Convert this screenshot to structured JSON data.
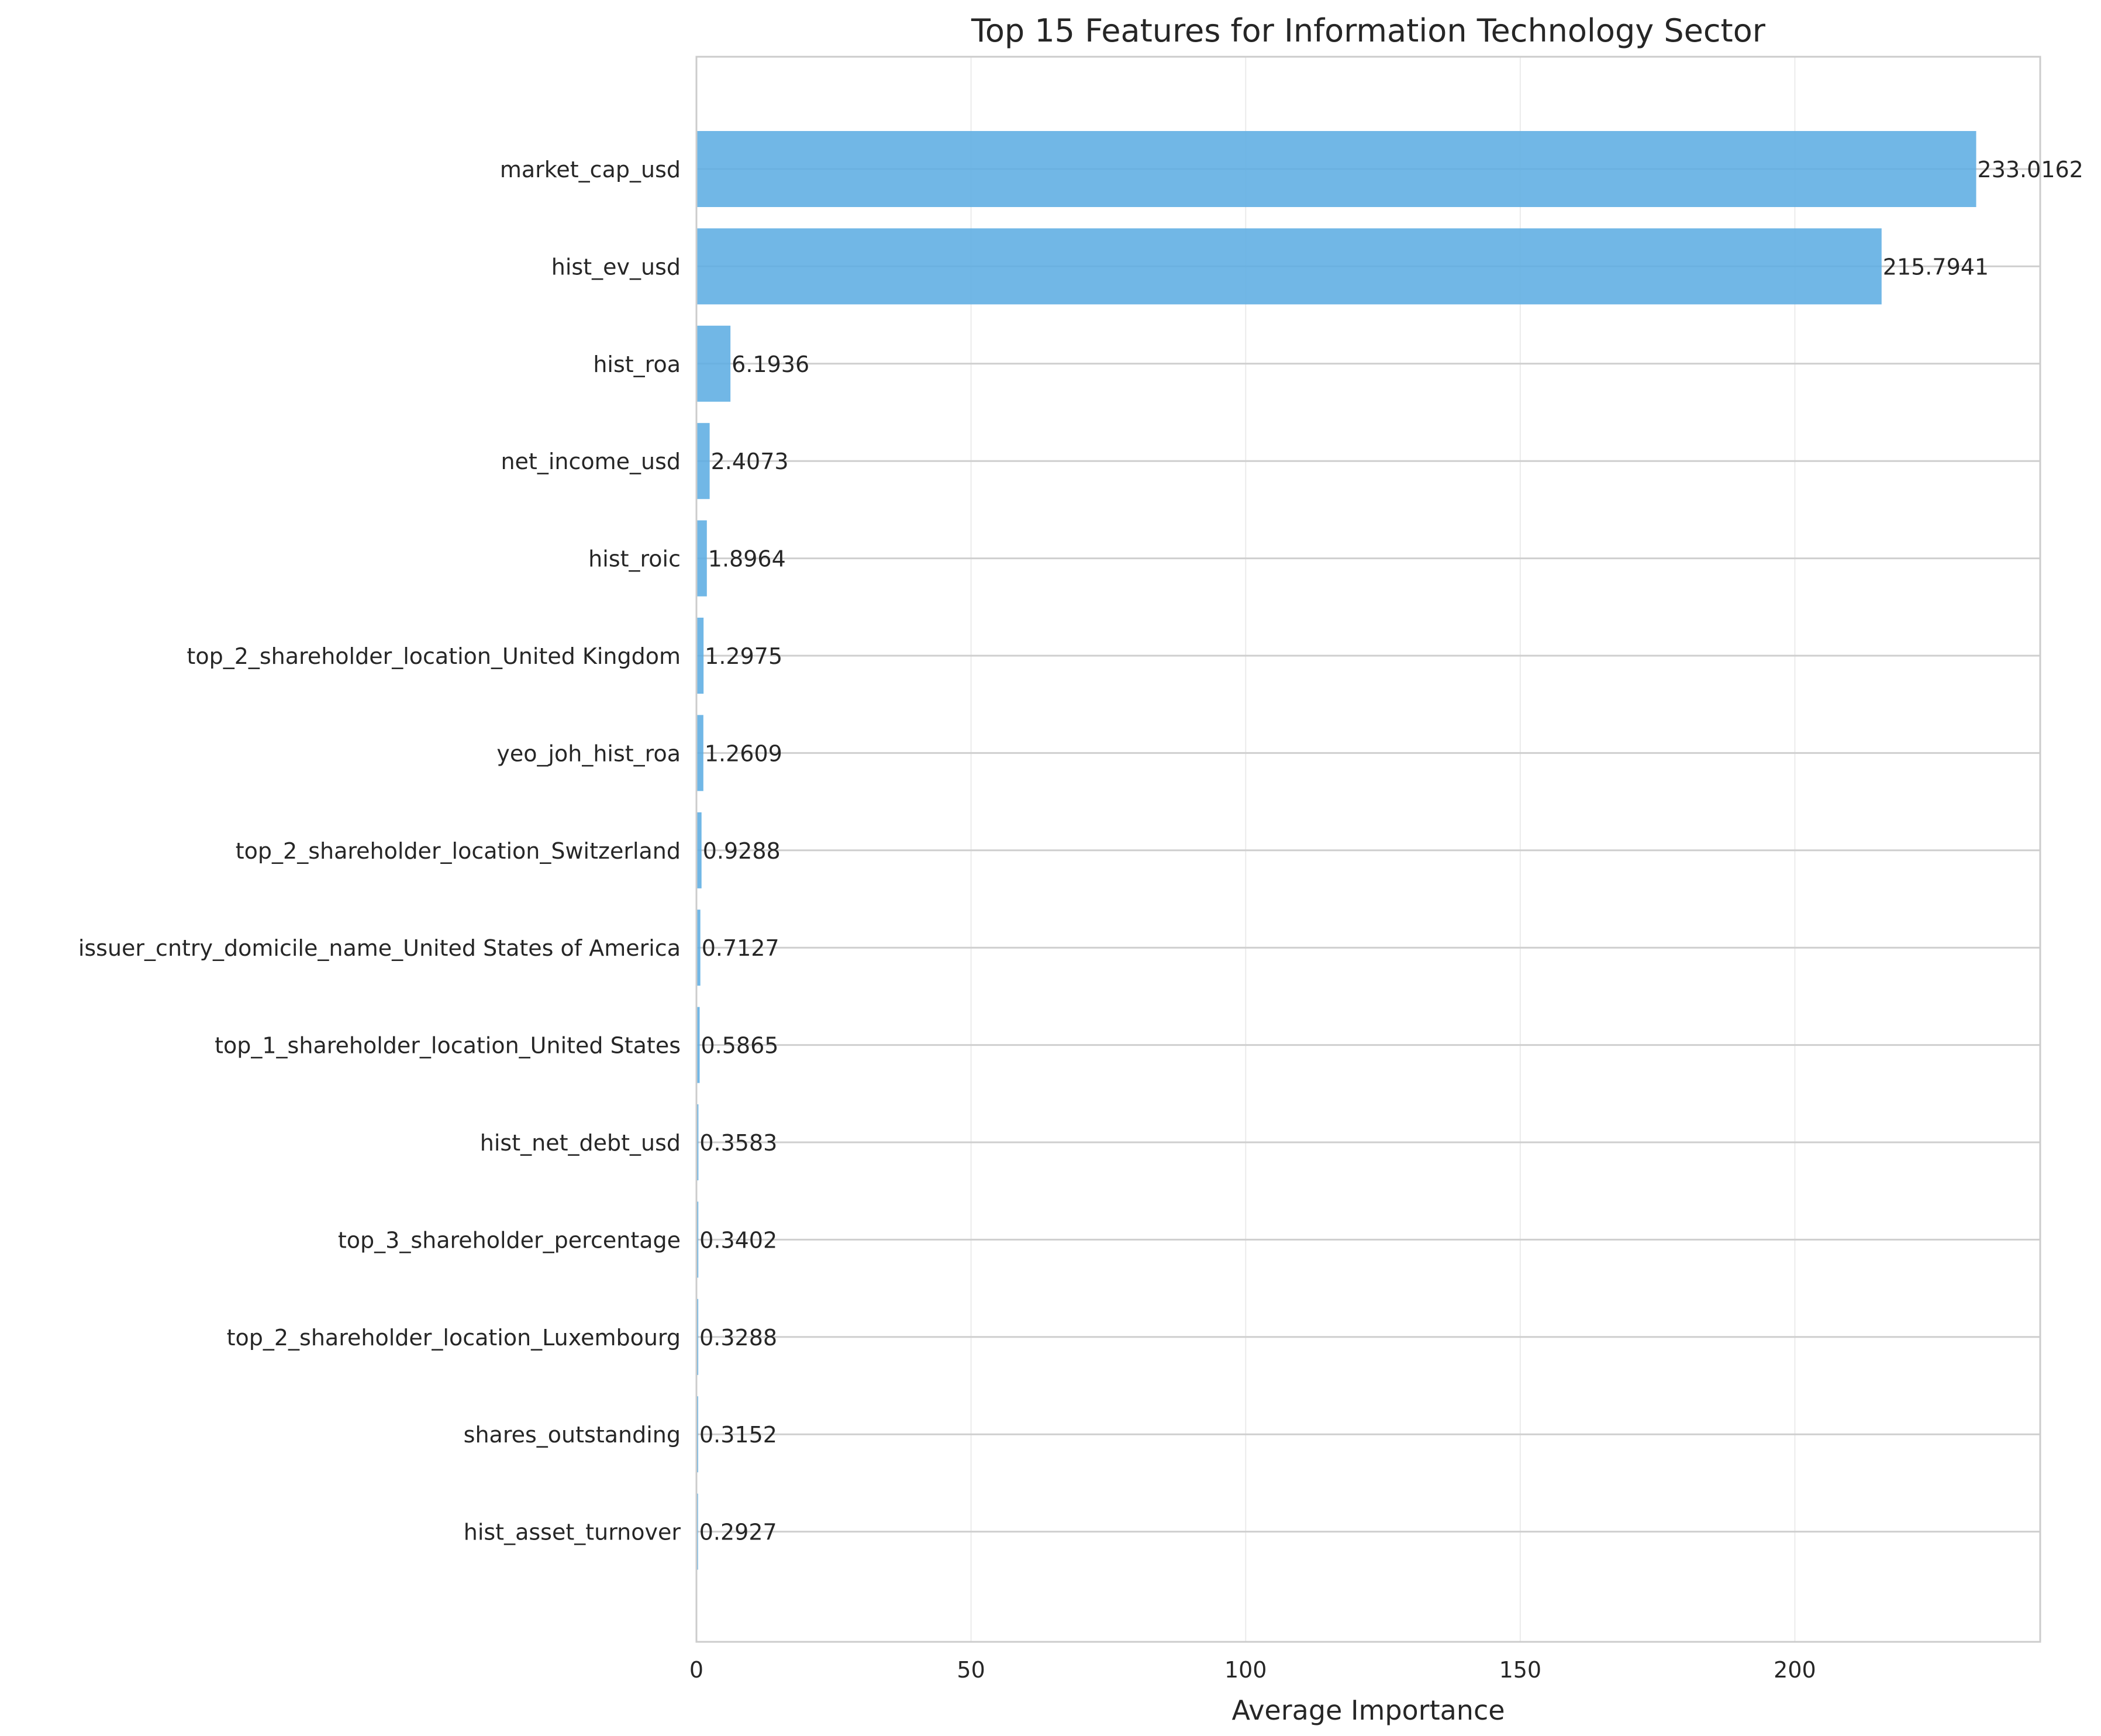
{
  "chart_data": {
    "type": "bar",
    "orientation": "horizontal",
    "title": "Top 15 Features for Information Technology Sector",
    "xlabel": "Average Importance",
    "ylabel": "",
    "xlim": [
      0,
      244.67
    ],
    "xticks": [
      0,
      50,
      100,
      150,
      200
    ],
    "grid": true,
    "bar_color": "#5dade2",
    "categories": [
      "market_cap_usd",
      "hist_ev_usd",
      "hist_roa",
      "net_income_usd",
      "hist_roic",
      "top_2_shareholder_location_United Kingdom",
      "yeo_joh_hist_roa",
      "top_2_shareholder_location_Switzerland",
      "issuer_cntry_domicile_name_United States of America",
      "top_1_shareholder_location_United States",
      "hist_net_debt_usd",
      "top_3_shareholder_percentage",
      "top_2_shareholder_location_Luxembourg",
      "shares_outstanding",
      "hist_asset_turnover"
    ],
    "values": [
      233.0162,
      215.7941,
      6.1936,
      2.4073,
      1.8964,
      1.2975,
      1.2609,
      0.9288,
      0.7127,
      0.5865,
      0.3583,
      0.3402,
      0.3288,
      0.3152,
      0.2927
    ],
    "value_labels": [
      "233.0162",
      "215.7941",
      "6.1936",
      "2.4073",
      "1.8964",
      "1.2975",
      "1.2609",
      "0.9288",
      "0.7127",
      "0.5865",
      "0.3583",
      "0.3402",
      "0.3288",
      "0.3152",
      "0.2927"
    ]
  }
}
